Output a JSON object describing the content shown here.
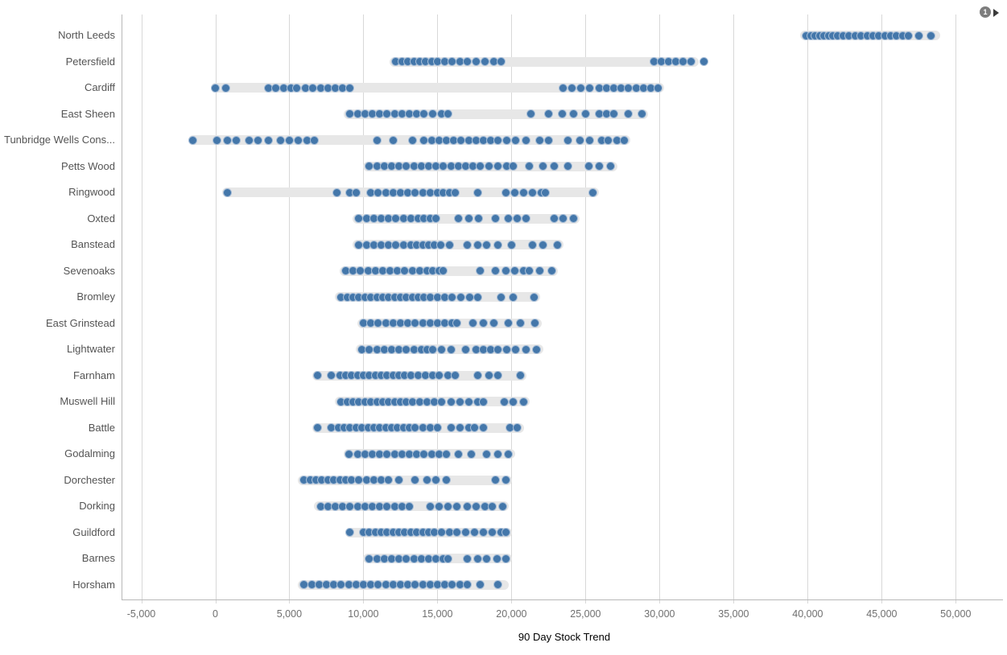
{
  "badge": {
    "count": "1"
  },
  "colors": {
    "dot": "#4477aa",
    "dot_ring": "#a6bdd7",
    "band": "#e7e7e7",
    "gridline": "#d8d8d8",
    "axis_line": "#b8b8b8",
    "tick_text": "#6f6f6f",
    "label_text": "#545454",
    "badge_bg": "#7d7d7d",
    "arrow": "#3a3a3a"
  },
  "chart_data": {
    "type": "scatter",
    "title": "",
    "xlabel": "90 Day Stock Trend",
    "ylabel": "",
    "xlim": [
      -6330,
      53460
    ],
    "grid": true,
    "legend": false,
    "tick_values": [
      -5000,
      0,
      5000,
      10000,
      15000,
      20000,
      25000,
      30000,
      35000,
      40000,
      45000,
      50000
    ],
    "tick_labels": [
      "-5,000",
      "0",
      "5,000",
      "10,000",
      "15,000",
      "20,000",
      "25,000",
      "30,000",
      "35,000",
      "40,000",
      "45,000",
      "50,000"
    ],
    "rows": [
      {
        "label": "North Leeds",
        "band": [
          39800,
          48600
        ],
        "points": [
          39900,
          40200,
          40500,
          40800,
          41100,
          41400,
          41700,
          42000,
          42400,
          42800,
          43200,
          43600,
          44000,
          44400,
          44800,
          45200,
          45600,
          46000,
          46400,
          46800,
          47500,
          48300
        ]
      },
      {
        "label": "Petersfield",
        "band": [
          12100,
          32300
        ],
        "points": [
          12200,
          12600,
          13000,
          13400,
          13800,
          14200,
          14600,
          15000,
          15500,
          16000,
          16500,
          17000,
          17600,
          18200,
          18800,
          19300,
          29600,
          30100,
          30600,
          31100,
          31600,
          32100,
          33000
        ]
      },
      {
        "label": "Cardiff",
        "band": [
          0,
          30000
        ],
        "points": [
          0,
          700,
          3600,
          4100,
          4600,
          5100,
          5500,
          6100,
          6600,
          7100,
          7600,
          8100,
          8600,
          9100,
          23500,
          24100,
          24700,
          25300,
          25900,
          26400,
          26900,
          27400,
          27900,
          28400,
          28900,
          29400,
          29900
        ]
      },
      {
        "label": "East Sheen",
        "band": [
          9000,
          28900
        ],
        "points": [
          9100,
          9600,
          10100,
          10600,
          11100,
          11600,
          12100,
          12600,
          13100,
          13600,
          14100,
          14700,
          15300,
          15700,
          21300,
          22500,
          23400,
          24200,
          25000,
          25900,
          26400,
          26900,
          27900,
          28800
        ]
      },
      {
        "label": "Tunbridge Wells Cons...",
        "band": [
          -1500,
          27700
        ],
        "points": [
          -1500,
          100,
          800,
          1400,
          2300,
          2900,
          3600,
          4400,
          5000,
          5600,
          6200,
          6700,
          10900,
          12000,
          13300,
          14100,
          14600,
          15100,
          15600,
          16100,
          16600,
          17100,
          17600,
          18100,
          18600,
          19100,
          19700,
          20300,
          21000,
          21900,
          22500,
          23800,
          24600,
          25300,
          26100,
          26500,
          27100,
          27600
        ]
      },
      {
        "label": "Petts Wood",
        "band": [
          10300,
          26800
        ],
        "points": [
          10400,
          10900,
          11400,
          11900,
          12400,
          12900,
          13400,
          13900,
          14400,
          14900,
          15400,
          15900,
          16400,
          16900,
          17400,
          17900,
          18500,
          19100,
          19700,
          20100,
          21200,
          22100,
          22900,
          23800,
          25200,
          25900,
          26700
        ]
      },
      {
        "label": "Ringwood",
        "band": [
          800,
          25600
        ],
        "points": [
          800,
          8200,
          9100,
          9500,
          10500,
          11000,
          11500,
          12000,
          12500,
          13000,
          13500,
          14000,
          14500,
          15000,
          15400,
          15800,
          16200,
          17700,
          19600,
          20200,
          20800,
          21400,
          22000,
          22300,
          25500
        ]
      },
      {
        "label": "Oxted",
        "band": [
          9600,
          24300
        ],
        "points": [
          9700,
          10200,
          10700,
          11200,
          11700,
          12200,
          12700,
          13200,
          13700,
          14100,
          14500,
          14900,
          16400,
          17100,
          17800,
          18900,
          19800,
          20400,
          21000,
          22900,
          23500,
          24200
        ]
      },
      {
        "label": "Banstead",
        "band": [
          9600,
          23200
        ],
        "points": [
          9700,
          10200,
          10700,
          11200,
          11700,
          12200,
          12700,
          13200,
          13600,
          14000,
          14400,
          14800,
          15200,
          15800,
          17000,
          17700,
          18300,
          19100,
          20000,
          21400,
          22100,
          23100
        ]
      },
      {
        "label": "Sevenoaks",
        "band": [
          8700,
          22800
        ],
        "points": [
          8800,
          9300,
          9800,
          10300,
          10800,
          11300,
          11800,
          12300,
          12800,
          13300,
          13800,
          14300,
          14700,
          15100,
          15400,
          17900,
          18900,
          19600,
          20200,
          20800,
          21200,
          21900,
          22700
        ]
      },
      {
        "label": "Bromley",
        "band": [
          8400,
          21600
        ],
        "points": [
          8500,
          8900,
          9300,
          9700,
          10100,
          10500,
          10900,
          11300,
          11700,
          12100,
          12500,
          12900,
          13300,
          13700,
          14100,
          14500,
          15000,
          15500,
          16000,
          16600,
          17200,
          17700,
          19300,
          20100,
          21500
        ]
      },
      {
        "label": "East Grinstead",
        "band": [
          9900,
          21700
        ],
        "points": [
          10000,
          10500,
          11000,
          11500,
          12000,
          12500,
          13000,
          13500,
          14000,
          14500,
          15000,
          15500,
          16000,
          16300,
          17400,
          18100,
          18800,
          19800,
          20600,
          21600
        ]
      },
      {
        "label": "Lightwater",
        "band": [
          9800,
          21800
        ],
        "points": [
          9900,
          10400,
          10900,
          11400,
          11900,
          12400,
          12900,
          13400,
          13900,
          14300,
          14700,
          15300,
          15900,
          16900,
          17600,
          18100,
          18600,
          19100,
          19700,
          20300,
          21000,
          21700
        ]
      },
      {
        "label": "Farnham",
        "band": [
          6900,
          20700
        ],
        "points": [
          6900,
          7800,
          8400,
          8800,
          9200,
          9600,
          10000,
          10400,
          10800,
          11200,
          11600,
          12000,
          12400,
          12800,
          13200,
          13700,
          14200,
          14700,
          15100,
          15700,
          16200,
          17700,
          18500,
          19100,
          20600
        ]
      },
      {
        "label": "Muswell Hill",
        "band": [
          8400,
          20900
        ],
        "points": [
          8500,
          8900,
          9300,
          9700,
          10100,
          10500,
          10900,
          11300,
          11700,
          12100,
          12500,
          12900,
          13300,
          13800,
          14300,
          14800,
          15300,
          15900,
          16500,
          17100,
          17700,
          18100,
          19500,
          20100,
          20800
        ]
      },
      {
        "label": "Battle",
        "band": [
          6900,
          20500
        ],
        "points": [
          6900,
          7800,
          8300,
          8700,
          9100,
          9500,
          9900,
          10300,
          10700,
          11100,
          11500,
          11900,
          12300,
          12700,
          13100,
          13500,
          14000,
          14500,
          15000,
          15900,
          16500,
          17100,
          17500,
          18100,
          19900,
          20400
        ]
      },
      {
        "label": "Godalming",
        "band": [
          9000,
          19900
        ],
        "points": [
          9000,
          9600,
          10100,
          10600,
          11100,
          11600,
          12100,
          12600,
          13100,
          13600,
          14100,
          14600,
          15100,
          15600,
          16400,
          17300,
          18300,
          19100,
          19800
        ]
      },
      {
        "label": "Dorchester",
        "band": [
          5900,
          19700
        ],
        "points": [
          6000,
          6400,
          6800,
          7200,
          7600,
          8000,
          8400,
          8800,
          9200,
          9700,
          10200,
          10700,
          11200,
          11700,
          12400,
          13500,
          14300,
          14900,
          15600,
          18900,
          19600
        ]
      },
      {
        "label": "Dorking",
        "band": [
          7000,
          19500
        ],
        "points": [
          7100,
          7600,
          8100,
          8600,
          9100,
          9600,
          10100,
          10600,
          11100,
          11600,
          12100,
          12600,
          13100,
          14500,
          15100,
          15700,
          16300,
          17000,
          17600,
          18200,
          18700,
          19400
        ]
      },
      {
        "label": "Guildford",
        "band": [
          9100,
          19700
        ],
        "points": [
          9100,
          10000,
          10400,
          10800,
          11200,
          11600,
          12000,
          12400,
          12800,
          13200,
          13600,
          14000,
          14400,
          14800,
          15300,
          15800,
          16300,
          16900,
          17500,
          18100,
          18700,
          19300,
          19600
        ]
      },
      {
        "label": "Barnes",
        "band": [
          10300,
          19700
        ],
        "points": [
          10400,
          10900,
          11400,
          11900,
          12400,
          12900,
          13400,
          13900,
          14400,
          14900,
          15400,
          15700,
          17000,
          17700,
          18300,
          19000,
          19600
        ]
      },
      {
        "label": "Horsham",
        "band": [
          5900,
          19500
        ],
        "points": [
          6000,
          6500,
          7000,
          7500,
          8000,
          8500,
          9000,
          9500,
          10000,
          10500,
          11000,
          11500,
          12000,
          12500,
          13000,
          13500,
          14000,
          14500,
          15000,
          15500,
          16000,
          16500,
          17000,
          17900,
          19100
        ]
      }
    ]
  }
}
